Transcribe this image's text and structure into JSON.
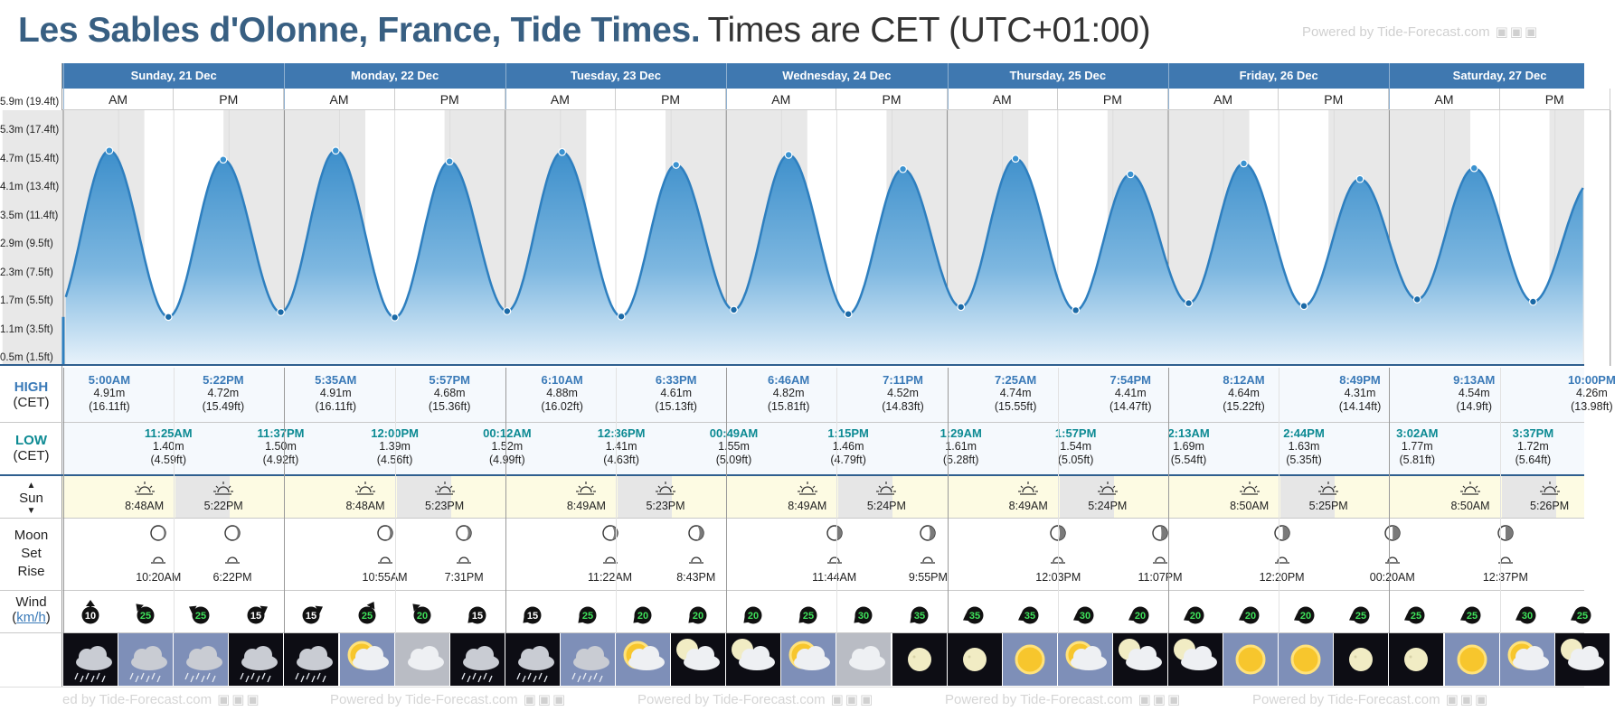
{
  "page": {
    "title": "Les Sables d'Olonne, France, Tide Times.",
    "subtitle": "Times are CET (UTC+01:00)",
    "powered_by": "Powered by Tide-Forecast.com",
    "powered_by_short": "ed by Tide-Forecast.com"
  },
  "labels": {
    "am": "AM",
    "pm": "PM",
    "high": "HIGH",
    "low": "LOW",
    "tz": "(CET)",
    "sun": "Sun",
    "moon": "Moon",
    "set": "Set",
    "rise": "Rise",
    "wind": "Wind",
    "kmh": "km/h"
  },
  "chart_data": {
    "type": "area",
    "ylabel": "",
    "y_ticks": [
      {
        "value": 0.5,
        "label": "0.5m (1.5ft)"
      },
      {
        "value": 1.1,
        "label": "1.1m (3.5ft)"
      },
      {
        "value": 1.7,
        "label": "1.7m (5.5ft)"
      },
      {
        "value": 2.3,
        "label": "2.3m (7.5ft)"
      },
      {
        "value": 2.9,
        "label": "2.9m (9.5ft)"
      },
      {
        "value": 3.5,
        "label": "3.5m (11.4ft)"
      },
      {
        "value": 4.1,
        "label": "4.1m (13.4ft)"
      },
      {
        "value": 4.7,
        "label": "4.7m (15.4ft)"
      },
      {
        "value": 5.3,
        "label": "5.3m (17.4ft)"
      },
      {
        "value": 5.9,
        "label": "5.9m (19.4ft)"
      }
    ],
    "ylim": [
      0.5,
      5.8
    ],
    "x_unit": "hours from Sunday, 21 Dec 00:00",
    "xlim": [
      0,
      168
    ],
    "days": [
      "Sunday, 21 Dec",
      "Monday, 22 Dec",
      "Tuesday, 23 Dec",
      "Wednesday, 24 Dec",
      "Thursday, 25 Dec",
      "Friday, 26 Dec",
      "Saturday, 27 Dec"
    ],
    "extremes": [
      {
        "day": 0,
        "type": "high",
        "time": "5:00AM",
        "h": 5.0,
        "m": "4.91m",
        "ft": "(16.11ft)"
      },
      {
        "day": 0,
        "type": "low",
        "time": "11:25AM",
        "h": 11.417,
        "m": "1.40m",
        "ft": "(4.59ft)"
      },
      {
        "day": 0,
        "type": "high",
        "time": "5:22PM",
        "h": 17.367,
        "m": "4.72m",
        "ft": "(15.49ft)"
      },
      {
        "day": 0,
        "type": "low",
        "time": "11:37PM",
        "h": 23.617,
        "m": "1.50m",
        "ft": "(4.92ft)"
      },
      {
        "day": 1,
        "type": "high",
        "time": "5:35AM",
        "h": 29.583,
        "m": "4.91m",
        "ft": "(16.11ft)"
      },
      {
        "day": 1,
        "type": "low",
        "time": "12:00PM",
        "h": 36.0,
        "m": "1.39m",
        "ft": "(4.56ft)"
      },
      {
        "day": 1,
        "type": "high",
        "time": "5:57PM",
        "h": 41.95,
        "m": "4.68m",
        "ft": "(15.36ft)"
      },
      {
        "day": 2,
        "type": "low",
        "time": "00:12AM",
        "h": 48.2,
        "m": "1.52m",
        "ft": "(4.99ft)"
      },
      {
        "day": 2,
        "type": "high",
        "time": "6:10AM",
        "h": 54.167,
        "m": "4.88m",
        "ft": "(16.02ft)"
      },
      {
        "day": 2,
        "type": "low",
        "time": "12:36PM",
        "h": 60.6,
        "m": "1.41m",
        "ft": "(4.63ft)"
      },
      {
        "day": 2,
        "type": "high",
        "time": "6:33PM",
        "h": 66.55,
        "m": "4.61m",
        "ft": "(15.13ft)"
      },
      {
        "day": 3,
        "type": "low",
        "time": "00:49AM",
        "h": 72.817,
        "m": "1.55m",
        "ft": "(5.09ft)"
      },
      {
        "day": 3,
        "type": "high",
        "time": "6:46AM",
        "h": 78.767,
        "m": "4.82m",
        "ft": "(15.81ft)"
      },
      {
        "day": 3,
        "type": "low",
        "time": "1:15PM",
        "h": 85.25,
        "m": "1.46m",
        "ft": "(4.79ft)"
      },
      {
        "day": 3,
        "type": "high",
        "time": "7:11PM",
        "h": 91.183,
        "m": "4.52m",
        "ft": "(14.83ft)"
      },
      {
        "day": 4,
        "type": "low",
        "time": "1:29AM",
        "h": 97.483,
        "m": "1.61m",
        "ft": "(5.28ft)"
      },
      {
        "day": 4,
        "type": "high",
        "time": "7:25AM",
        "h": 103.417,
        "m": "4.74m",
        "ft": "(15.55ft)"
      },
      {
        "day": 4,
        "type": "low",
        "time": "1:57PM",
        "h": 109.95,
        "m": "1.54m",
        "ft": "(5.05ft)"
      },
      {
        "day": 4,
        "type": "high",
        "time": "7:54PM",
        "h": 115.9,
        "m": "4.41m",
        "ft": "(14.47ft)"
      },
      {
        "day": 5,
        "type": "low",
        "time": "2:13AM",
        "h": 122.217,
        "m": "1.69m",
        "ft": "(5.54ft)"
      },
      {
        "day": 5,
        "type": "high",
        "time": "8:12AM",
        "h": 128.2,
        "m": "4.64m",
        "ft": "(15.22ft)"
      },
      {
        "day": 5,
        "type": "low",
        "time": "2:44PM",
        "h": 134.733,
        "m": "1.63m",
        "ft": "(5.35ft)"
      },
      {
        "day": 5,
        "type": "high",
        "time": "8:49PM",
        "h": 140.817,
        "m": "4.31m",
        "ft": "(14.14ft)"
      },
      {
        "day": 6,
        "type": "low",
        "time": "3:02AM",
        "h": 147.033,
        "m": "1.77m",
        "ft": "(5.81ft)"
      },
      {
        "day": 6,
        "type": "high",
        "time": "9:13AM",
        "h": 153.217,
        "m": "4.54m",
        "ft": "(14.9ft)"
      },
      {
        "day": 6,
        "type": "low",
        "time": "3:37PM",
        "h": 159.617,
        "m": "1.72m",
        "ft": "(5.64ft)"
      },
      {
        "day": 6,
        "type": "high",
        "time": "10:00PM",
        "h": 166.0,
        "m": "4.26m",
        "ft": "(13.98ft)"
      }
    ]
  },
  "sun": [
    {
      "day": 0,
      "rise": "8:48AM",
      "set": "5:22PM"
    },
    {
      "day": 1,
      "rise": "8:48AM",
      "set": "5:23PM"
    },
    {
      "day": 2,
      "rise": "8:49AM",
      "set": "5:23PM"
    },
    {
      "day": 3,
      "rise": "8:49AM",
      "set": "5:24PM"
    },
    {
      "day": 4,
      "rise": "8:49AM",
      "set": "5:24PM"
    },
    {
      "day": 5,
      "rise": "8:50AM",
      "set": "5:25PM"
    },
    {
      "day": 6,
      "rise": "8:50AM",
      "set": "5:26PM"
    }
  ],
  "moon": [
    {
      "h": 10.333,
      "time": "10:20AM",
      "event": "rise"
    },
    {
      "h": 18.367,
      "time": "6:22PM",
      "event": "set"
    },
    {
      "h": 34.917,
      "time": "10:55AM",
      "event": "rise"
    },
    {
      "h": 43.517,
      "time": "7:31PM",
      "event": "set"
    },
    {
      "h": 59.367,
      "time": "11:22AM",
      "event": "rise"
    },
    {
      "h": 68.717,
      "time": "8:43PM",
      "event": "set"
    },
    {
      "h": 83.733,
      "time": "11:44AM",
      "event": "rise"
    },
    {
      "h": 93.917,
      "time": "9:55PM",
      "event": "set"
    },
    {
      "h": 108.05,
      "time": "12:03PM",
      "event": "rise"
    },
    {
      "h": 119.117,
      "time": "11:07PM",
      "event": "set"
    },
    {
      "h": 132.333,
      "time": "12:20PM",
      "event": "rise"
    },
    {
      "h": 144.333,
      "time": "00:20AM",
      "event": "set"
    },
    {
      "h": 156.617,
      "time": "12:37PM",
      "event": "rise"
    }
  ],
  "wind": [
    {
      "speed": "10",
      "dir": 0
    },
    {
      "speed": "25",
      "dir": -45
    },
    {
      "speed": "25",
      "dir": -60
    },
    {
      "speed": "15",
      "dir": 60
    },
    {
      "speed": "15",
      "dir": 60
    },
    {
      "speed": "25",
      "dir": 30
    },
    {
      "speed": "20",
      "dir": -45
    },
    {
      "speed": "15",
      "dir": -135
    },
    {
      "speed": "15",
      "dir": -135
    },
    {
      "speed": "25",
      "dir": -135
    },
    {
      "speed": "20",
      "dir": -135
    },
    {
      "speed": "20",
      "dir": -135
    },
    {
      "speed": "20",
      "dir": -135
    },
    {
      "speed": "25",
      "dir": -135
    },
    {
      "speed": "30",
      "dir": -135
    },
    {
      "speed": "35",
      "dir": -135
    },
    {
      "speed": "35",
      "dir": -120
    },
    {
      "speed": "35",
      "dir": -120
    },
    {
      "speed": "30",
      "dir": -120
    },
    {
      "speed": "20",
      "dir": -120
    },
    {
      "speed": "20",
      "dir": -120
    },
    {
      "speed": "20",
      "dir": -120
    },
    {
      "speed": "20",
      "dir": -120
    },
    {
      "speed": "25",
      "dir": -120
    },
    {
      "speed": "25",
      "dir": -120
    },
    {
      "speed": "25",
      "dir": -120
    },
    {
      "speed": "30",
      "dir": -120
    },
    {
      "speed": "25",
      "dir": -120
    }
  ],
  "weather": [
    "night-cloud-rain",
    "cloud-rain",
    "cloud-rain",
    "night-cloud-rain",
    "night-cloud-rain",
    "sun-cloud",
    "overcast",
    "night-cloud-rain",
    "night-cloud-rain",
    "cloud-rain",
    "sun-cloud",
    "moon-cloud",
    "moon-cloud",
    "sun-cloud",
    "overcast",
    "moon",
    "moon",
    "sun",
    "sun-cloud",
    "moon-cloud",
    "moon-cloud",
    "sun",
    "sun",
    "moon",
    "moon",
    "sun",
    "sun-cloud",
    "moon-cloud"
  ],
  "colors": {
    "header": "#3f78b0",
    "title": "#385f82",
    "curve": "#2e7fbf",
    "fill_top": "#3d8fcb",
    "fill_bottom": "#e9f3fb",
    "high_time": "#3a7ab8",
    "low_time": "#0c8a93",
    "night": "#e8e8e8",
    "sun_row": "#fdfbe3"
  }
}
